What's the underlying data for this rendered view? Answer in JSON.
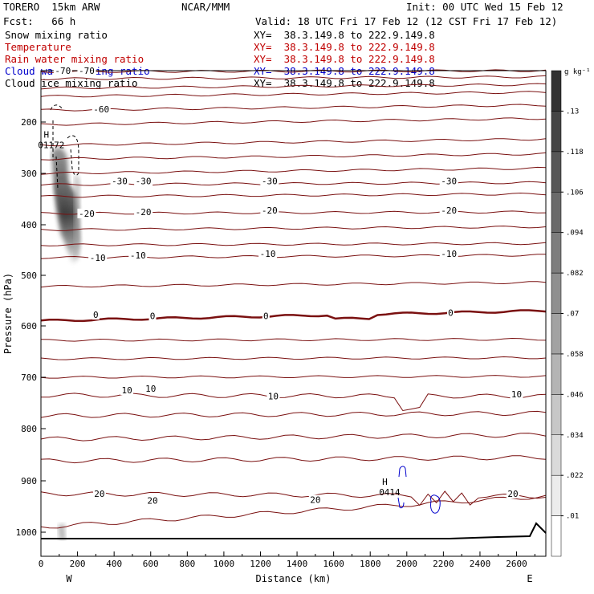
{
  "header": {
    "model": "TORERO  15km ARW",
    "org": "NCAR/MMM",
    "init": "Init: 00 UTC Wed 15 Feb 12",
    "fcst": "Fcst:   66 h",
    "valid": "Valid: 18 UTC Fri 17 Feb 12 (12 CST Fri 17 Feb 12)",
    "fields": [
      {
        "name": "Snow mixing ratio",
        "xy": "XY=  38.3.149.8 to 222.9.149.8",
        "color": "#000000"
      },
      {
        "name": "Temperature",
        "xy": "XY=  38.3.149.8 to 222.9.149.8",
        "color": "#c00000"
      },
      {
        "name": "Rain water mixing ratio",
        "xy": "XY=  38.3.149.8 to 222.9.149.8",
        "color": "#c00000"
      },
      {
        "name": "Cloud water mixing ratio",
        "xy": "XY=  38.3.149.8 to 222.9.149.8",
        "color": "#0000cc"
      },
      {
        "name": "Cloud ice mixing ratio",
        "xy": "XY=  38.3.149.8 to 222.9.149.8",
        "color": "#000000"
      }
    ]
  },
  "chart_data": {
    "type": "cross-section",
    "xlabel": "Distance (km)",
    "ylabel": "Pressure (hPa)",
    "x_ticks": [
      0,
      200,
      400,
      600,
      800,
      1000,
      1200,
      1400,
      1600,
      1800,
      2000,
      2200,
      2400,
      2600
    ],
    "y_ticks": [
      200,
      300,
      400,
      500,
      600,
      700,
      800,
      900,
      1000
    ],
    "x_end_labels": {
      "left": "W",
      "right": "E"
    },
    "colorbar": {
      "unit": "g kg⁻¹",
      "levels": [
        ".01",
        ".022",
        ".034",
        ".046",
        ".058",
        ".07",
        ".082",
        ".094",
        ".106",
        ".118",
        ".13"
      ]
    },
    "temperature_labels": [
      {
        "text": "-70",
        "x": 120,
        "p": 100
      },
      {
        "text": "-70",
        "x": 250,
        "p": 100
      },
      {
        "text": "-60",
        "x": 330,
        "p": 175
      },
      {
        "text": "-30",
        "x": 430,
        "p": 315
      },
      {
        "text": "-30",
        "x": 560,
        "p": 315
      },
      {
        "text": "-30",
        "x": 1250,
        "p": 315
      },
      {
        "text": "-30",
        "x": 2230,
        "p": 315
      },
      {
        "text": "-20",
        "x": 250,
        "p": 378
      },
      {
        "text": "-20",
        "x": 560,
        "p": 375
      },
      {
        "text": "-20",
        "x": 1250,
        "p": 372
      },
      {
        "text": "-20",
        "x": 2230,
        "p": 372
      },
      {
        "text": "-10",
        "x": 310,
        "p": 465
      },
      {
        "text": "-10",
        "x": 530,
        "p": 460
      },
      {
        "text": "-10",
        "x": 1240,
        "p": 457
      },
      {
        "text": "-10",
        "x": 2230,
        "p": 457
      },
      {
        "text": "0",
        "x": 300,
        "p": 578
      },
      {
        "text": "0",
        "x": 610,
        "p": 580
      },
      {
        "text": "0",
        "x": 1230,
        "p": 580
      },
      {
        "text": "0",
        "x": 2240,
        "p": 574
      },
      {
        "text": "10",
        "x": 470,
        "p": 725
      },
      {
        "text": "10",
        "x": 600,
        "p": 722
      },
      {
        "text": "10",
        "x": 1270,
        "p": 737
      },
      {
        "text": "10",
        "x": 2600,
        "p": 733
      },
      {
        "text": "20",
        "x": 320,
        "p": 925
      },
      {
        "text": "20",
        "x": 610,
        "p": 938
      },
      {
        "text": "20",
        "x": 1500,
        "p": 937
      },
      {
        "text": "20",
        "x": 2580,
        "p": 925
      }
    ],
    "extrema": [
      {
        "letter": "H",
        "value": "01172",
        "x": 30,
        "p": 243,
        "color": "#000000"
      },
      {
        "letter": "H",
        "value": "0414",
        "x": 1880,
        "p": 920,
        "color": "#0000cc"
      }
    ]
  }
}
